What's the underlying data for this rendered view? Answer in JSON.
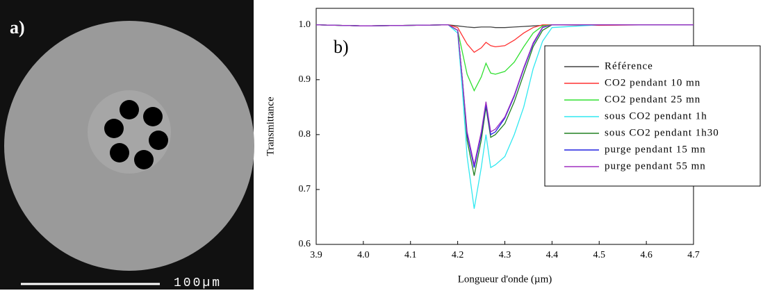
{
  "panel_a": {
    "label": "a)",
    "scale_bar": "100µm"
  },
  "chart_data": {
    "type": "line",
    "panel_label": "b)",
    "x_label": "Longueur d'onde (µm)",
    "y_label": "Transmittance",
    "x": [
      3.9,
      4.0,
      4.1,
      4.18,
      4.2,
      4.21,
      4.22,
      4.235,
      4.25,
      4.26,
      4.27,
      4.28,
      4.3,
      4.32,
      4.34,
      4.36,
      4.38,
      4.4,
      4.5,
      4.6,
      4.7
    ],
    "series": [
      {
        "name": "Référence",
        "color": "#404040",
        "values": [
          1,
          0.998,
          0.999,
          1,
          0.998,
          0.997,
          0.996,
          0.995,
          0.996,
          0.996,
          0.996,
          0.995,
          0.995,
          0.996,
          0.997,
          0.998,
          0.999,
          1,
          1,
          1,
          1
        ]
      },
      {
        "name": "CO2 pendant 10 mn",
        "color": "#ff3030",
        "values": [
          1,
          0.998,
          0.999,
          1,
          0.995,
          0.98,
          0.965,
          0.95,
          0.958,
          0.968,
          0.962,
          0.96,
          0.962,
          0.972,
          0.985,
          0.995,
          1,
          1,
          0.999,
          1,
          1
        ]
      },
      {
        "name": "CO2 pendant 25 mn",
        "color": "#30e030",
        "values": [
          1,
          0.998,
          0.999,
          1,
          0.99,
          0.95,
          0.91,
          0.88,
          0.905,
          0.93,
          0.912,
          0.91,
          0.915,
          0.932,
          0.96,
          0.985,
          0.998,
          1,
          1,
          1,
          1
        ]
      },
      {
        "name": "sous CO2 pendant 1h",
        "color": "#30e8f0",
        "values": [
          1,
          0.998,
          0.999,
          1,
          0.985,
          0.88,
          0.76,
          0.665,
          0.74,
          0.8,
          0.74,
          0.745,
          0.76,
          0.8,
          0.85,
          0.92,
          0.97,
          0.995,
          1,
          1,
          1
        ]
      },
      {
        "name": "sous CO2 pendant 1h30",
        "color": "#208020",
        "values": [
          1,
          0.998,
          0.999,
          1,
          0.99,
          0.9,
          0.79,
          0.725,
          0.79,
          0.85,
          0.795,
          0.8,
          0.82,
          0.86,
          0.91,
          0.96,
          0.99,
          1,
          1,
          1,
          1
        ]
      },
      {
        "name": "purge pendant 15 mn",
        "color": "#2020e0",
        "values": [
          1,
          0.998,
          0.999,
          1,
          0.99,
          0.9,
          0.8,
          0.74,
          0.8,
          0.855,
          0.8,
          0.805,
          0.83,
          0.87,
          0.92,
          0.965,
          0.995,
          1,
          1,
          1,
          1
        ]
      },
      {
        "name": "purge pendant 55 mn",
        "color": "#a030c0",
        "values": [
          1,
          0.998,
          0.999,
          1,
          0.99,
          0.9,
          0.805,
          0.745,
          0.805,
          0.86,
          0.805,
          0.81,
          0.832,
          0.872,
          0.922,
          0.967,
          0.996,
          1,
          1,
          1,
          1
        ]
      }
    ],
    "xlim": [
      3.9,
      4.7
    ],
    "xticks": [
      3.9,
      {
        "value": 4.0,
        "label": "4.0"
      },
      4.1,
      4.2,
      4.3,
      4.4,
      4.5,
      4.6,
      4.7
    ],
    "ylim": [
      0.6,
      1.03
    ],
    "yticks": [
      0.6,
      0.7,
      0.8,
      0.9,
      {
        "value": 1,
        "label": "1.0"
      }
    ],
    "grid": false,
    "legend": "right"
  }
}
